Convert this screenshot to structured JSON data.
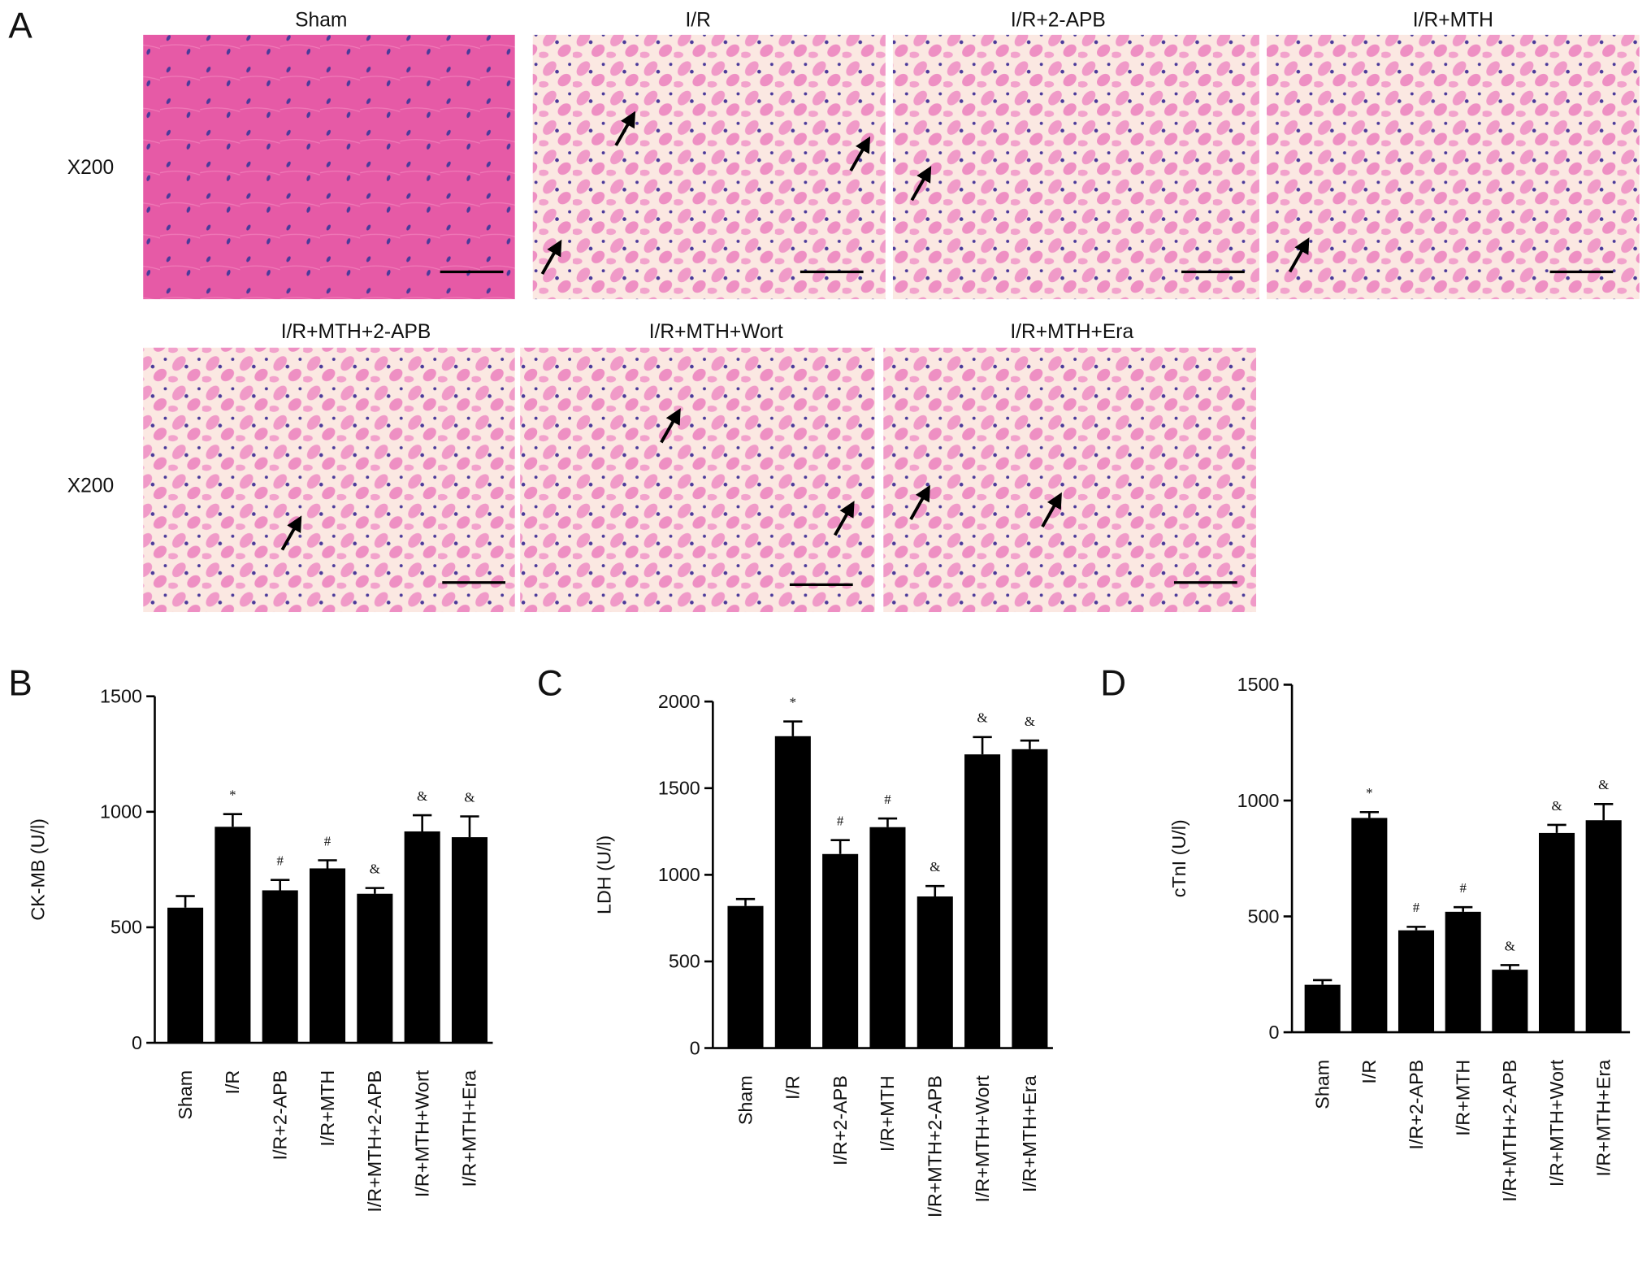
{
  "panel_a": {
    "label": "A",
    "magnification": [
      "X200",
      "X200"
    ],
    "images": [
      {
        "title": "Sham"
      },
      {
        "title": "I/R"
      },
      {
        "title": "I/R+2-APB"
      },
      {
        "title": "I/R+MTH"
      },
      {
        "title": "I/R+MTH+2-APB"
      },
      {
        "title": "I/R+MTH+Wort"
      },
      {
        "title": "I/R+MTH+Era"
      }
    ]
  },
  "chart_data": [
    {
      "type": "bar",
      "panel": "B",
      "ylabel": "CK-MB (U/l)",
      "color": "#000000",
      "categories": [
        "Sham",
        "I/R",
        "I/R+2-APB",
        "I/R+MTH",
        "I/R+MTH+2-APB",
        "I/R+MTH+Wort",
        "I/R+MTH+Era"
      ],
      "values": [
        585,
        935,
        660,
        755,
        645,
        915,
        890
      ],
      "errors": [
        50,
        55,
        45,
        35,
        25,
        70,
        90
      ],
      "annotations": [
        null,
        "*",
        "#",
        "#",
        "&",
        "&",
        "&"
      ],
      "ylim": [
        0,
        1500
      ],
      "yticks": [
        0,
        500,
        1000,
        1500
      ]
    },
    {
      "type": "bar",
      "panel": "C",
      "ylabel": "LDH (U/l)",
      "color": "#000000",
      "categories": [
        "Sham",
        "I/R",
        "I/R+2-APB",
        "I/R+MTH",
        "I/R+MTH+2-APB",
        "I/R+MTH+Wort",
        "I/R+MTH+Era"
      ],
      "values": [
        820,
        1800,
        1120,
        1275,
        875,
        1695,
        1725
      ],
      "errors": [
        40,
        85,
        80,
        50,
        60,
        100,
        50
      ],
      "annotations": [
        null,
        "*",
        "#",
        "#",
        "&",
        "&",
        "&"
      ],
      "ylim": [
        0,
        2000
      ],
      "yticks": [
        0,
        500,
        1000,
        1500,
        2000
      ]
    },
    {
      "type": "bar",
      "panel": "D",
      "ylabel": "cTnI (U/l)",
      "color": "#000000",
      "categories": [
        "Sham",
        "I/R",
        "I/R+2-APB",
        "I/R+MTH",
        "I/R+MTH+2-APB",
        "I/R+MTH+Wort",
        "I/R+MTH+Era"
      ],
      "values": [
        205,
        925,
        440,
        520,
        270,
        860,
        915
      ],
      "errors": [
        20,
        25,
        15,
        20,
        20,
        35,
        70
      ],
      "annotations": [
        null,
        "*",
        "#",
        "#",
        "&",
        "&",
        "&"
      ],
      "ylim": [
        0,
        1500
      ],
      "yticks": [
        0,
        500,
        1000,
        1500
      ]
    }
  ]
}
